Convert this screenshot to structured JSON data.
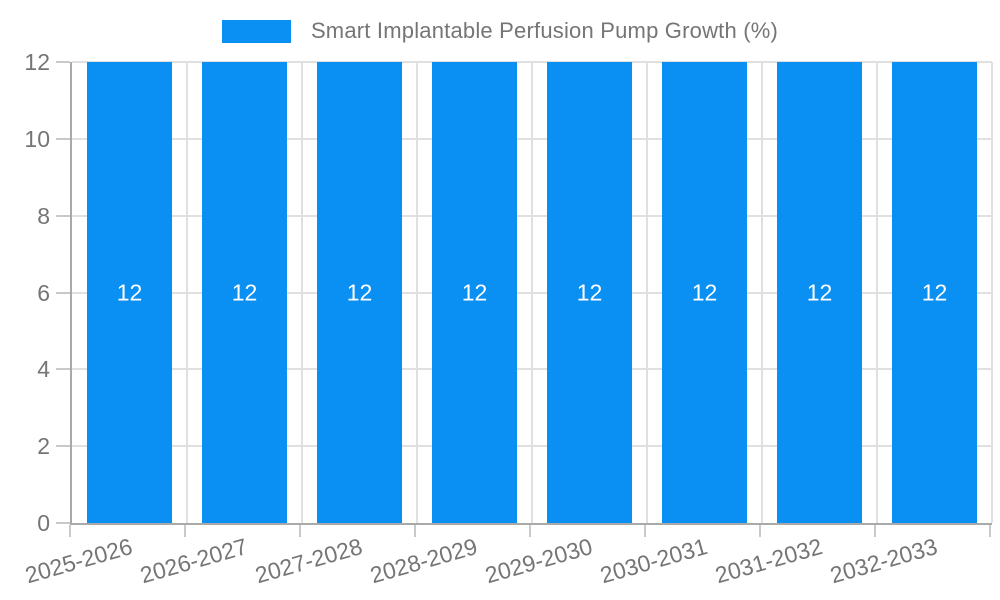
{
  "chart_data": {
    "type": "bar",
    "title": "Smart Implantable Perfusion Pump Growth (%)",
    "categories": [
      "2025-2026",
      "2026-2027",
      "2027-2028",
      "2028-2029",
      "2029-2030",
      "2030-2031",
      "2031-2032",
      "2032-2033"
    ],
    "series": [
      {
        "name": "Smart Implantable Perfusion Pump Growth (%)",
        "values": [
          12,
          12,
          12,
          12,
          12,
          12,
          12,
          12
        ]
      }
    ],
    "bar_labels": [
      "12",
      "12",
      "12",
      "12",
      "12",
      "12",
      "12",
      "12"
    ],
    "xlabel": "",
    "ylabel": "",
    "ylim": [
      0,
      12
    ],
    "yticks": [
      0,
      2,
      4,
      6,
      8,
      10,
      12
    ],
    "grid": true,
    "legend_position": "top",
    "colors": {
      "bar": "#0A8FF2",
      "bar_label": "#FFFFFF",
      "axis_text": "#757575",
      "grid_line": "#E0E0E0",
      "axis_line": "#A9A9A9",
      "tick": "#C9C9C9",
      "background": "#FFFFFF"
    }
  }
}
